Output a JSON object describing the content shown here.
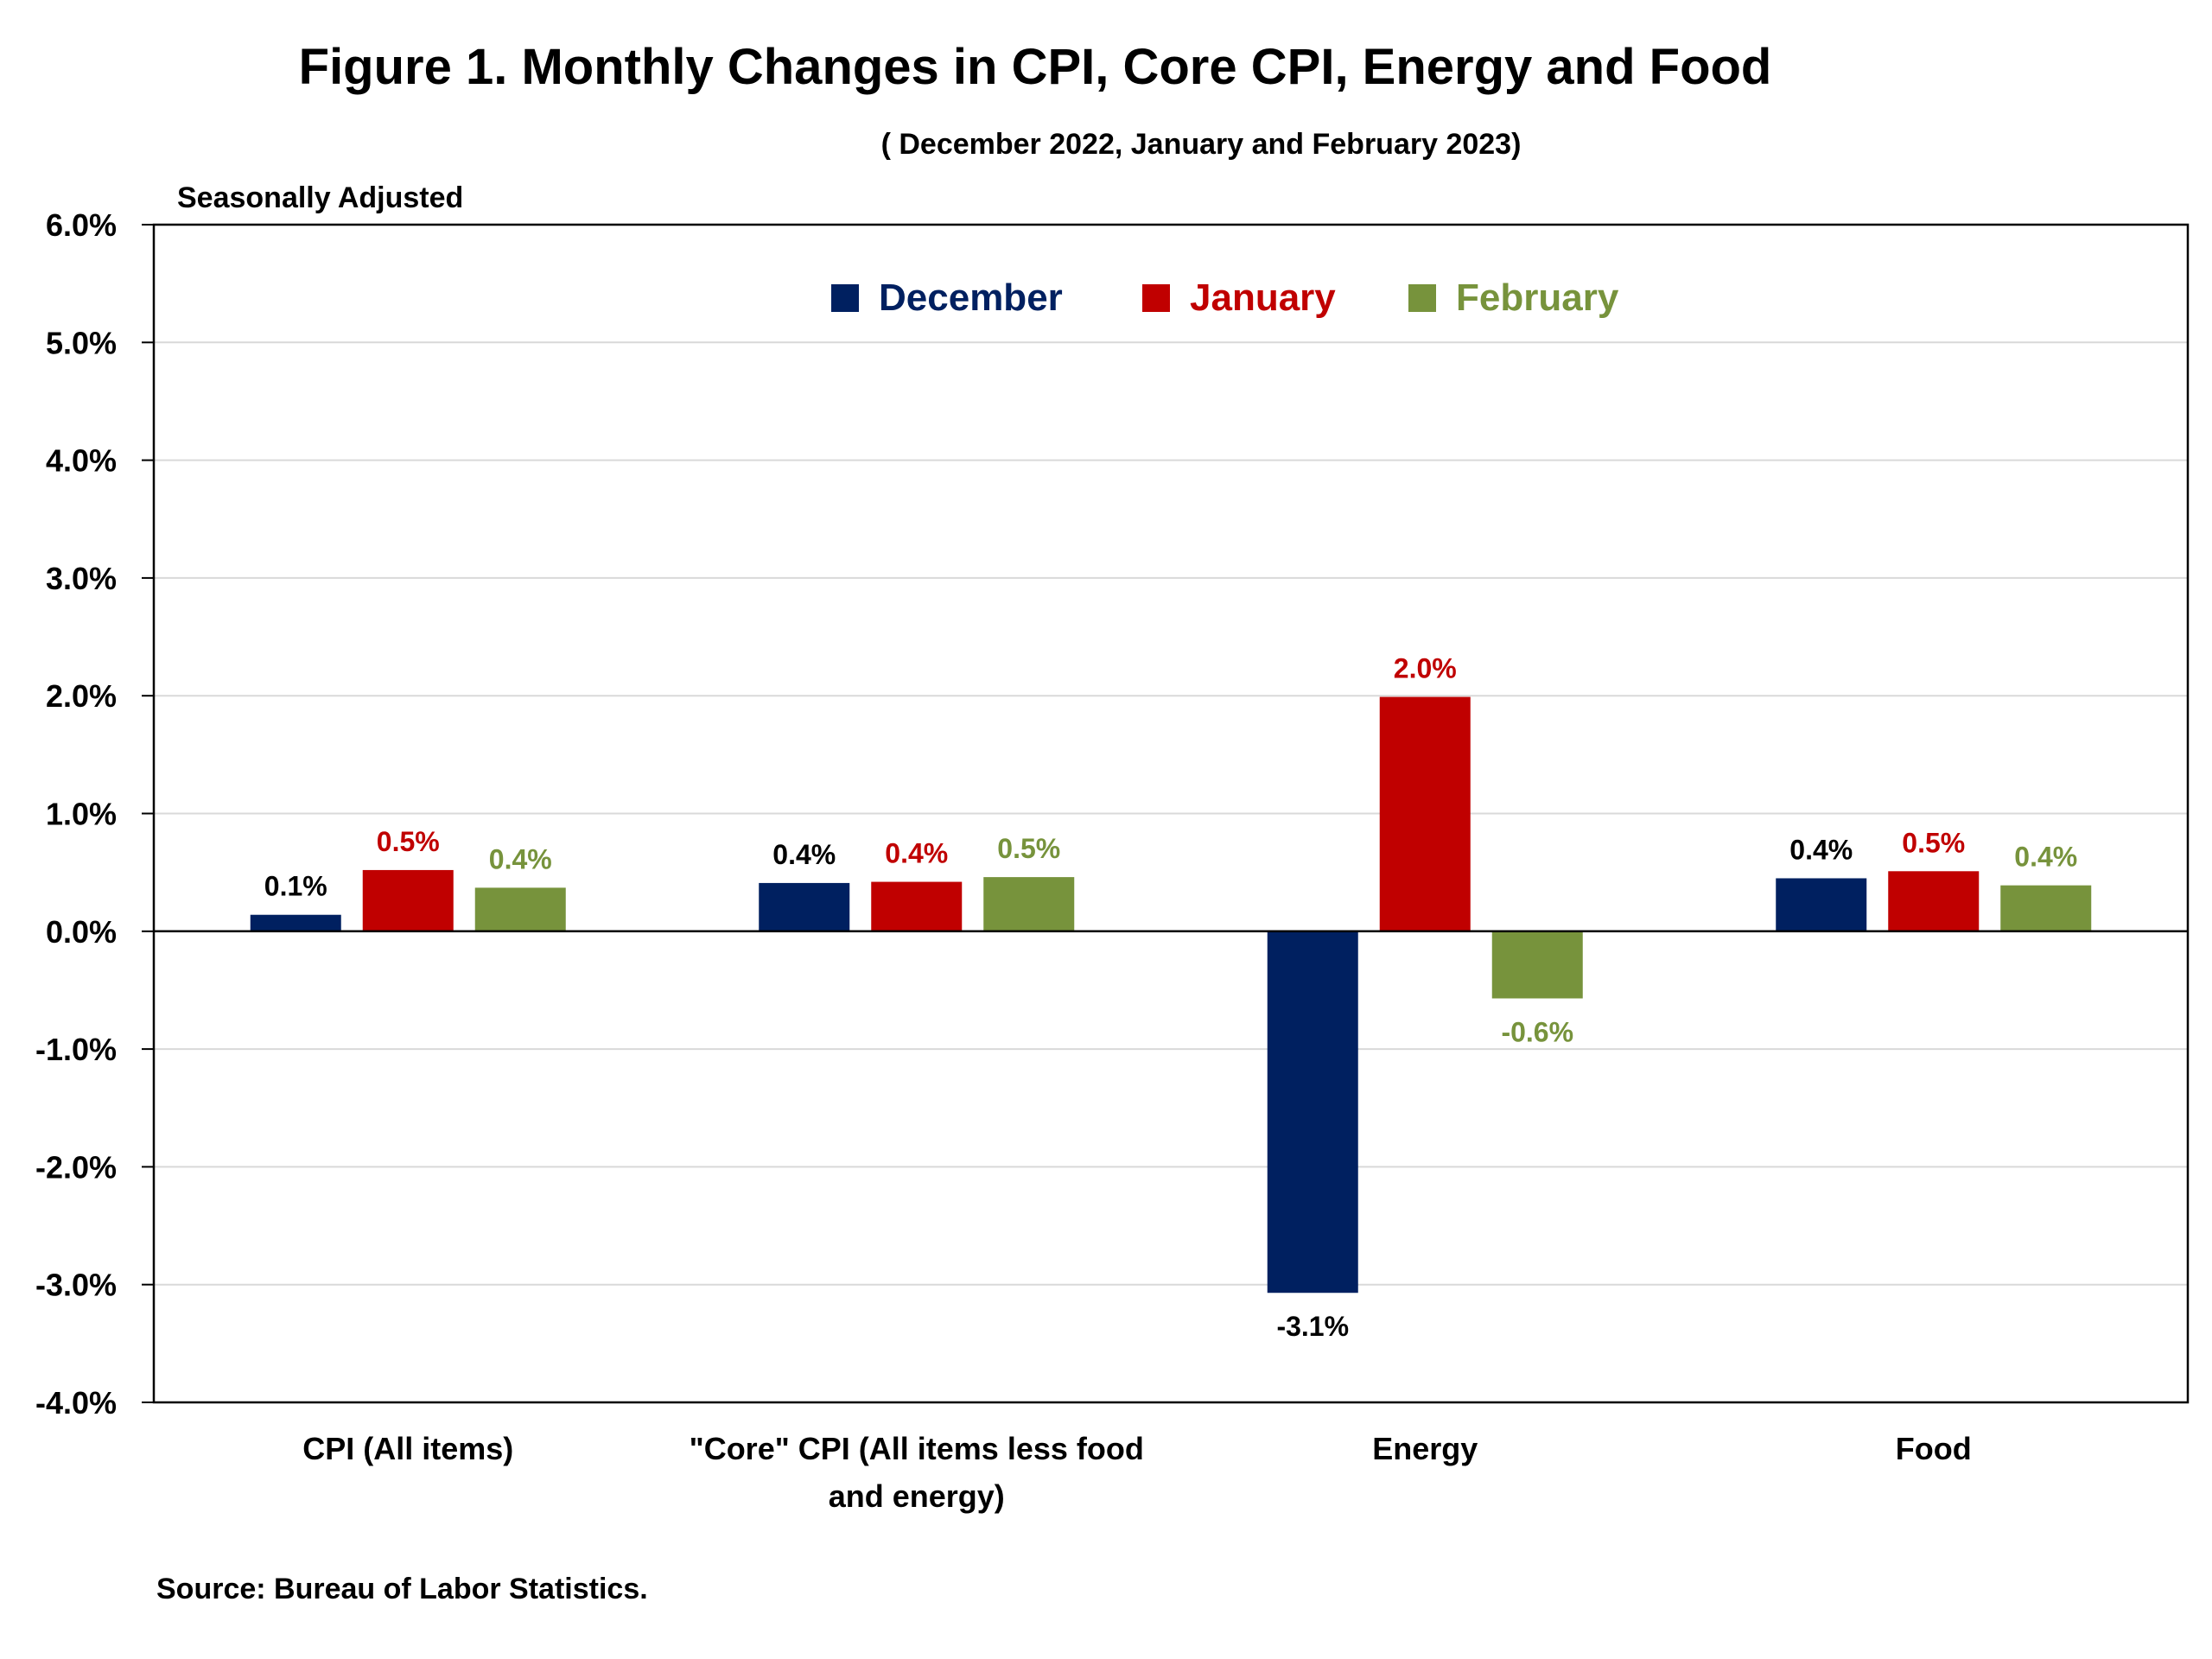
{
  "chart_data": {
    "type": "bar",
    "title": "Figure 1. Monthly Changes in CPI, Core CPI, Energy and Food",
    "subtitle": "( December 2022, January and February 2023)",
    "ylabel": "Seasonally Adjusted",
    "source": "Source: Bureau of Labor Statistics.",
    "ylim": [
      -4,
      6
    ],
    "yticks": [
      6,
      5,
      4,
      3,
      2,
      1,
      0,
      -1,
      -2,
      -3,
      -4
    ],
    "ytick_labels": [
      "6.0%",
      "5.0%",
      "4.0%",
      "3.0%",
      "2.0%",
      "1.0%",
      "0.0%",
      "-1.0%",
      "-2.0%",
      "-3.0%",
      "-4.0%"
    ],
    "grid": true,
    "legend_position": "top-center",
    "categories": [
      [
        "CPI (All items)"
      ],
      [
        "\"Core\" CPI (All items less food",
        "and energy)"
      ],
      [
        "Energy"
      ],
      [
        "Food"
      ]
    ],
    "series": [
      {
        "name": "December",
        "color": "#002060",
        "values": [
          0.14,
          0.41,
          -3.07,
          0.45
        ],
        "labels": [
          "0.1%",
          "0.4%",
          "-3.1%",
          "0.4%"
        ],
        "label_color": "#000000"
      },
      {
        "name": "January",
        "color": "#C00000",
        "values": [
          0.52,
          0.42,
          1.99,
          0.51
        ],
        "labels": [
          "0.5%",
          "0.4%",
          "2.0%",
          "0.5%"
        ],
        "label_color": "#C00000"
      },
      {
        "name": "February",
        "color": "#77933C",
        "values": [
          0.37,
          0.46,
          -0.57,
          0.39
        ],
        "labels": [
          "0.4%",
          "0.5%",
          "-0.6%",
          "0.4%"
        ],
        "label_color": "#77933C"
      }
    ]
  }
}
